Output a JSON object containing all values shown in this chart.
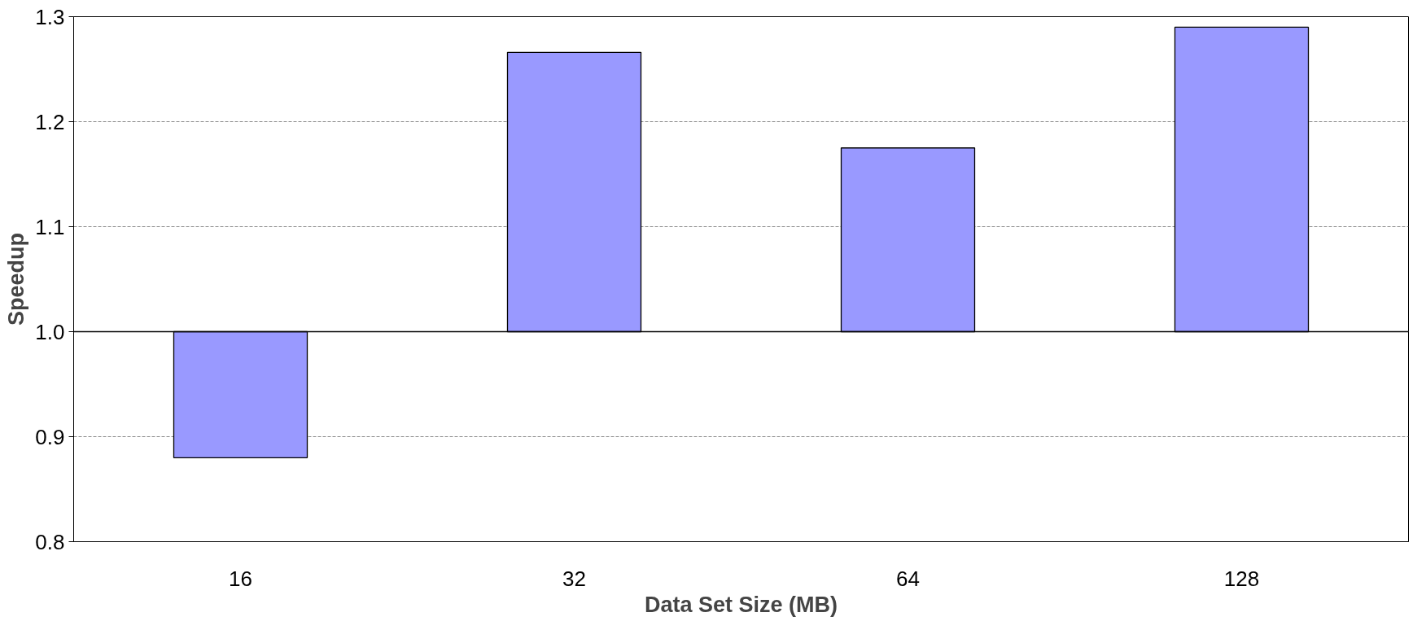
{
  "chart_data": {
    "type": "bar",
    "xlabel": "Data Set Size (MB)",
    "ylabel": "Speedup",
    "categories": [
      "16",
      "32",
      "64",
      "128"
    ],
    "base": [
      1.0,
      1.0,
      1.0,
      1.0
    ],
    "values": [
      -0.12,
      0.266,
      0.175,
      0.29
    ],
    "color": "#9999ff",
    "ylim": [
      0.8,
      1.3
    ],
    "yticks": [
      {
        "value": 0.8,
        "label": "0.8"
      },
      {
        "value": 0.9,
        "label": "0.9"
      },
      {
        "value": 1.0,
        "label": "1.0"
      },
      {
        "value": 1.1,
        "label": "1.1"
      },
      {
        "value": 1.2,
        "label": "1.2"
      },
      {
        "value": 1.3,
        "label": "1.3"
      }
    ],
    "ref_lines": [
      {
        "axis": "y",
        "value": 1.0,
        "color": "#000000"
      }
    ],
    "grid": "y"
  }
}
